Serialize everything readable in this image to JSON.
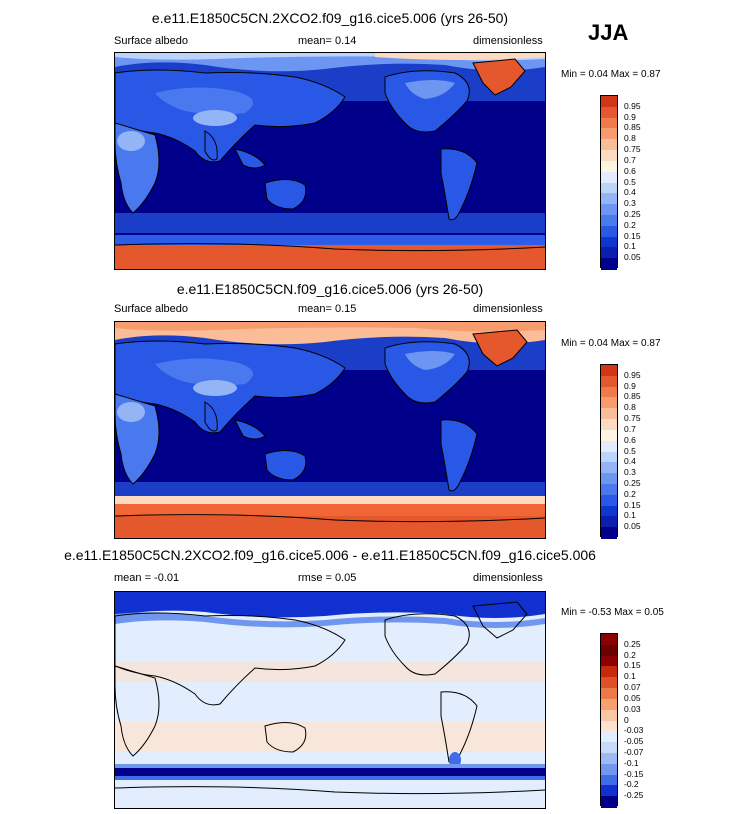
{
  "season": "JJA",
  "colors": {
    "scale": [
      "#00008b",
      "#0a1fb0",
      "#1036d0",
      "#2a58e6",
      "#4a78ee",
      "#6c96f2",
      "#93b5f6",
      "#bcd3fa",
      "#e2ecfd",
      "#fff3e4",
      "#fddac2",
      "#fbbd98",
      "#f79c6e",
      "#f07a4a",
      "#e5572c",
      "#d13518",
      "#b51a0a",
      "#8b0000"
    ],
    "diff": [
      "#00008b",
      "#1030d0",
      "#3f6de8",
      "#7096f0",
      "#9dbaf5",
      "#c8dafa",
      "#e2eefd",
      "#fde3cf",
      "#fbc6a3",
      "#f5a070",
      "#ec7a48",
      "#de5025",
      "#c8280d",
      "#8b0000"
    ],
    "ocean": "#00008b",
    "southern_ocean_ctl": "#f06634",
    "southern_ocean_co2": "#2c5de8"
  },
  "panels": [
    {
      "id": "co2",
      "title": "e.e11.E1850C5CN.2XCO2.f09_g16.cice5.006 (yrs 26-50)",
      "left_text": "Surface albedo",
      "center_text": "mean=   0.14",
      "right_text": "dimensionless",
      "minmax": "Min =   0.04 Max =   0.87",
      "colorbar_ticks": [
        "0.95",
        "0.9",
        "0.85",
        "0.8",
        "0.75",
        "0.7",
        "0.6",
        "0.5",
        "0.4",
        "0.3",
        "0.25",
        "0.2",
        "0.15",
        "0.1",
        "0.05"
      ]
    },
    {
      "id": "ctl",
      "title": "e.e11.E1850C5CN.f09_g16.cice5.006 (yrs 26-50)",
      "left_text": "Surface albedo",
      "center_text": "mean=   0.15",
      "right_text": "dimensionless",
      "minmax": "Min =   0.04 Max =   0.87",
      "colorbar_ticks": [
        "0.95",
        "0.9",
        "0.85",
        "0.8",
        "0.75",
        "0.7",
        "0.6",
        "0.5",
        "0.4",
        "0.3",
        "0.25",
        "0.2",
        "0.15",
        "0.1",
        "0.05"
      ]
    },
    {
      "id": "diff",
      "title": "e.e11.E1850C5CN.2XCO2.f09_g16.cice5.006 - e.e11.E1850C5CN.f09_g16.cice5.006",
      "left_text": "mean =  -0.01",
      "center_text": "rmse =   0.05",
      "right_text": "dimensionless",
      "minmax": "Min =  -0.53 Max =   0.05",
      "colorbar_ticks": [
        "0.25",
        "0.2",
        "0.15",
        "0.1",
        "0.07",
        "0.05",
        "0.03",
        "0",
        "-0.03",
        "-0.05",
        "-0.07",
        "-0.1",
        "-0.15",
        "-0.2",
        "-0.25"
      ]
    }
  ],
  "chart_data": {
    "type": "heatmap",
    "projection": "cylindrical equidistant, global",
    "season": "JJA",
    "variable": "Surface albedo",
    "units": "dimensionless",
    "panels": [
      {
        "case": "e.e11.E1850C5CN.2XCO2.f09_g16.cice5.006 (yrs 26-50)",
        "mean": 0.14,
        "min": 0.04,
        "max": 0.87,
        "levels": [
          0.05,
          0.1,
          0.15,
          0.2,
          0.25,
          0.3,
          0.4,
          0.5,
          0.6,
          0.7,
          0.75,
          0.8,
          0.85,
          0.9,
          0.95
        ]
      },
      {
        "case": "e.e11.E1850C5CN.f09_g16.cice5.006 (yrs 26-50)",
        "mean": 0.15,
        "min": 0.04,
        "max": 0.87,
        "levels": [
          0.05,
          0.1,
          0.15,
          0.2,
          0.25,
          0.3,
          0.4,
          0.5,
          0.6,
          0.7,
          0.75,
          0.8,
          0.85,
          0.9,
          0.95
        ]
      },
      {
        "case": "e.e11.E1850C5CN.2XCO2.f09_g16.cice5.006 - e.e11.E1850C5CN.f09_g16.cice5.006",
        "mean": -0.01,
        "rmse": 0.05,
        "min": -0.53,
        "max": 0.05,
        "levels": [
          -0.25,
          -0.2,
          -0.15,
          -0.1,
          -0.07,
          -0.05,
          -0.03,
          0,
          0.03,
          0.05,
          0.07,
          0.1,
          0.15,
          0.2,
          0.25
        ]
      }
    ]
  }
}
